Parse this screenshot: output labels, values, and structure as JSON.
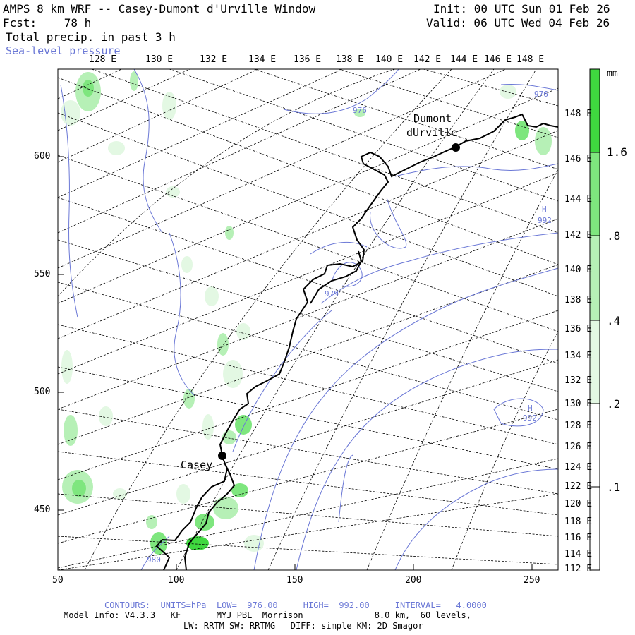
{
  "header": {
    "title": "AMPS 8 km WRF -- Casey-Dumont d'Urville Window",
    "fcst": "Fcst:    78 h",
    "field": "Total precip. in past 3 h",
    "contour_field": "Sea-level pressure",
    "init": "Init: 00 UTC Sun 01 Feb 26",
    "valid": "Valid: 06 UTC Wed 04 Feb 26"
  },
  "colorbar": {
    "unit": "mm",
    "labels": [
      ".1",
      ".2",
      ".4",
      ".8",
      "1.6"
    ],
    "levels": [
      0.1,
      0.2,
      0.4,
      0.8,
      1.6
    ],
    "colors": [
      "#ffffff",
      "#e3f8e3",
      "#b6f0b6",
      "#7ee67e",
      "#3fd83f"
    ]
  },
  "axes": {
    "x_ticks": [
      "50",
      "100",
      "150",
      "200",
      "250"
    ],
    "y_ticks": [
      "450",
      "500",
      "550",
      "600"
    ],
    "top_lon": [
      "128 E",
      "130 E",
      "132 E",
      "134 E",
      "136 E",
      "138 E",
      "140 E",
      "142 E",
      "144 E",
      "146 E",
      "148 E"
    ],
    "right_lon": [
      "148 E",
      "146 E",
      "144 E",
      "142 E",
      "140 E",
      "138 E",
      "136 E",
      "134 E",
      "132 E",
      "130 E",
      "128 E",
      "126 E",
      "124 E",
      "122 E",
      "120 E",
      "118 E",
      "116 E",
      "114 E",
      "112 E"
    ]
  },
  "stations": [
    {
      "name": "Casey"
    },
    {
      "name_line1": "Dumont",
      "name_line2": "dUrville"
    }
  ],
  "contour_labels": [
    "976",
    "976",
    "H",
    "992",
    "979",
    "H",
    "992",
    "980"
  ],
  "footer": {
    "contours": "CONTOURS:  UNITS=hPa  LOW=  976.00     HIGH=  992.00     INTERVAL=   4.0000",
    "model": "Model Info: V4.3.3   KF       MYJ PBL  Morrison              8.0 km,  60 levels,",
    "physics": "LW: RRTM SW: RRTMG   DIFF: simple KM: 2D Smagor"
  }
}
